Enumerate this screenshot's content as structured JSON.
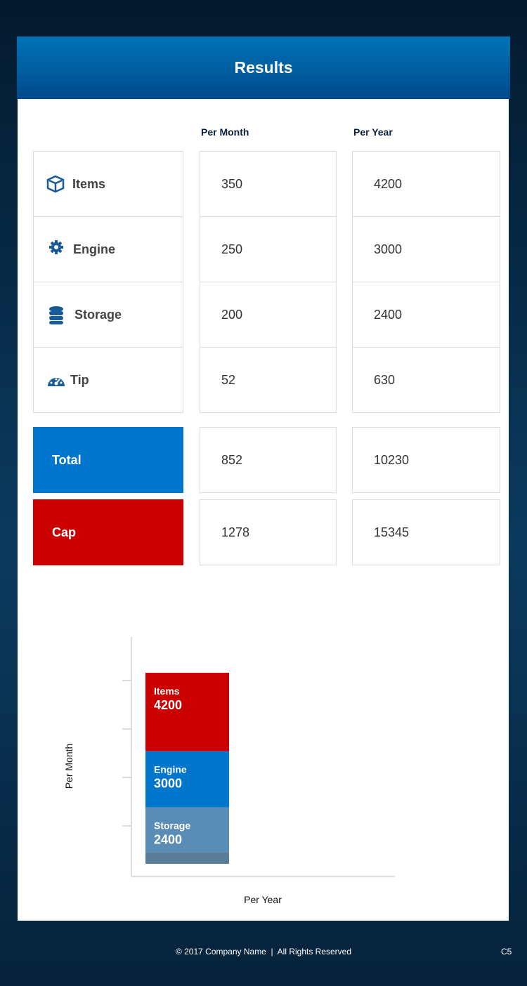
{
  "header": {
    "title": "Results"
  },
  "table": {
    "columns": [
      "Per Month",
      "Per Year"
    ],
    "rows": [
      [
        "Items",
        350,
        4200
      ],
      [
        "Engine",
        250,
        3000
      ],
      [
        "Storage",
        200,
        2400
      ],
      [
        "Tip",
        52,
        630
      ]
    ],
    "totals": [
      [
        "Total",
        852,
        10230
      ],
      [
        "Cap",
        1278,
        15345
      ]
    ]
  },
  "chart_data": {
    "type": "stacked_bar",
    "xlabel": "Per Year",
    "ylabel": "Per Month",
    "series": [
      {
        "name": "Items",
        "color": "#cc0000",
        "values": [
          4200
        ]
      },
      {
        "name": "Engine",
        "color": "#0077cc",
        "values": [
          3000
        ]
      },
      {
        "name": "Storage",
        "color": "#5a8db5",
        "values": [
          2400
        ]
      },
      {
        "name": "Tips",
        "color": "#5a7d97",
        "values": [
          630
        ]
      }
    ]
  },
  "footer": {
    "copyright": "© 2017 Company Name  |  All Rights Reserved",
    "page": "C5"
  }
}
